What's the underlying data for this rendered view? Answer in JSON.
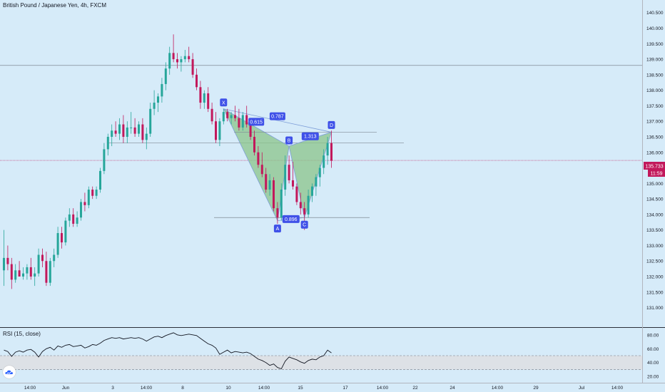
{
  "header": {
    "title": "British Pound / Japanese Yen, 4h, FXCM"
  },
  "rsi_panel": {
    "title": "RSI (15, close)"
  },
  "logo": {
    "icon": "tradingview-cloud-icon"
  },
  "chart_data": [
    {
      "type": "candlestick",
      "title": "British Pound / Japanese Yen, 4h, FXCM",
      "ylim": [
        130.6,
        140.7
      ],
      "y_ticks": [
        "140.500",
        "140.000",
        "139.500",
        "139.000",
        "138.500",
        "138.000",
        "137.500",
        "137.000",
        "136.500",
        "136.000",
        "135.500",
        "135.000",
        "134.500",
        "134.000",
        "133.500",
        "133.000",
        "132.500",
        "132.000",
        "131.500",
        "131.000"
      ],
      "x_ticks": [
        "14:00",
        "Jun",
        "3",
        "14:00",
        "8",
        "10",
        "14:00",
        "15",
        "17",
        "14:00",
        "22",
        "24",
        "14:00",
        "29",
        "Jul",
        "14:00"
      ],
      "last_price": "135.733",
      "countdown": "11:59",
      "colors": {
        "up": "#26a69a",
        "down": "#c2185b",
        "pattern_fill": "#8bc48a",
        "pattern_line": "#7e9ed8",
        "label_bg": "#3f51e8",
        "price_tag": "#c2185b"
      },
      "candles": [
        {
          "o": 132.2,
          "h": 133.5,
          "l": 131.7,
          "c": 132.6
        },
        {
          "o": 132.6,
          "h": 133.0,
          "l": 132.2,
          "c": 132.4
        },
        {
          "o": 132.4,
          "h": 132.6,
          "l": 131.6,
          "c": 131.9
        },
        {
          "o": 131.9,
          "h": 132.4,
          "l": 131.8,
          "c": 132.2
        },
        {
          "o": 132.2,
          "h": 132.5,
          "l": 132.0,
          "c": 132.0
        },
        {
          "o": 132.0,
          "h": 132.3,
          "l": 131.9,
          "c": 132.1
        },
        {
          "o": 132.1,
          "h": 132.4,
          "l": 131.9,
          "c": 132.3
        },
        {
          "o": 132.3,
          "h": 132.6,
          "l": 131.9,
          "c": 132.0
        },
        {
          "o": 132.0,
          "h": 132.3,
          "l": 131.7,
          "c": 132.1
        },
        {
          "o": 132.1,
          "h": 132.9,
          "l": 132.0,
          "c": 132.7
        },
        {
          "o": 132.7,
          "h": 132.9,
          "l": 132.3,
          "c": 132.5
        },
        {
          "o": 132.5,
          "h": 132.8,
          "l": 131.7,
          "c": 131.8
        },
        {
          "o": 131.8,
          "h": 132.6,
          "l": 131.7,
          "c": 132.5
        },
        {
          "o": 132.5,
          "h": 132.9,
          "l": 132.3,
          "c": 132.7
        },
        {
          "o": 132.7,
          "h": 133.6,
          "l": 132.6,
          "c": 133.4
        },
        {
          "o": 133.4,
          "h": 133.6,
          "l": 132.9,
          "c": 133.1
        },
        {
          "o": 133.1,
          "h": 133.9,
          "l": 133.0,
          "c": 133.8
        },
        {
          "o": 133.8,
          "h": 134.2,
          "l": 133.6,
          "c": 134.0
        },
        {
          "o": 134.0,
          "h": 134.2,
          "l": 133.6,
          "c": 133.7
        },
        {
          "o": 133.7,
          "h": 134.1,
          "l": 133.6,
          "c": 133.9
        },
        {
          "o": 133.9,
          "h": 134.5,
          "l": 133.8,
          "c": 134.4
        },
        {
          "o": 134.4,
          "h": 134.7,
          "l": 134.1,
          "c": 134.3
        },
        {
          "o": 134.3,
          "h": 134.9,
          "l": 134.2,
          "c": 134.8
        },
        {
          "o": 134.8,
          "h": 134.9,
          "l": 134.5,
          "c": 134.6
        },
        {
          "o": 134.6,
          "h": 134.9,
          "l": 134.5,
          "c": 134.8
        },
        {
          "o": 134.8,
          "h": 135.5,
          "l": 134.7,
          "c": 135.4
        },
        {
          "o": 135.4,
          "h": 136.3,
          "l": 135.3,
          "c": 136.1
        },
        {
          "o": 136.1,
          "h": 136.6,
          "l": 135.9,
          "c": 136.5
        },
        {
          "o": 136.5,
          "h": 136.9,
          "l": 136.2,
          "c": 136.7
        },
        {
          "o": 136.7,
          "h": 137.0,
          "l": 136.5,
          "c": 136.6
        },
        {
          "o": 136.6,
          "h": 137.1,
          "l": 136.4,
          "c": 136.9
        },
        {
          "o": 136.9,
          "h": 137.2,
          "l": 136.3,
          "c": 136.5
        },
        {
          "o": 136.5,
          "h": 137.0,
          "l": 136.3,
          "c": 136.8
        },
        {
          "o": 136.8,
          "h": 137.3,
          "l": 136.6,
          "c": 136.8
        },
        {
          "o": 136.8,
          "h": 137.1,
          "l": 136.5,
          "c": 136.6
        },
        {
          "o": 136.6,
          "h": 137.0,
          "l": 136.5,
          "c": 136.9
        },
        {
          "o": 136.9,
          "h": 137.1,
          "l": 136.3,
          "c": 136.4
        },
        {
          "o": 136.4,
          "h": 136.8,
          "l": 136.1,
          "c": 136.6
        },
        {
          "o": 136.6,
          "h": 137.6,
          "l": 136.5,
          "c": 137.4
        },
        {
          "o": 137.4,
          "h": 138.0,
          "l": 137.2,
          "c": 137.6
        },
        {
          "o": 137.6,
          "h": 137.9,
          "l": 137.3,
          "c": 137.8
        },
        {
          "o": 137.8,
          "h": 138.4,
          "l": 137.6,
          "c": 138.2
        },
        {
          "o": 138.2,
          "h": 138.9,
          "l": 138.0,
          "c": 138.7
        },
        {
          "o": 138.7,
          "h": 139.4,
          "l": 138.5,
          "c": 139.2
        },
        {
          "o": 139.2,
          "h": 139.8,
          "l": 138.9,
          "c": 139.0
        },
        {
          "o": 139.0,
          "h": 139.2,
          "l": 138.7,
          "c": 138.9
        },
        {
          "o": 138.9,
          "h": 139.1,
          "l": 138.6,
          "c": 139.0
        },
        {
          "o": 139.0,
          "h": 139.3,
          "l": 138.9,
          "c": 139.1
        },
        {
          "o": 139.1,
          "h": 139.4,
          "l": 138.9,
          "c": 139.0
        },
        {
          "o": 139.0,
          "h": 139.2,
          "l": 138.4,
          "c": 138.5
        },
        {
          "o": 138.5,
          "h": 138.7,
          "l": 138.0,
          "c": 138.1
        },
        {
          "o": 138.1,
          "h": 138.3,
          "l": 137.4,
          "c": 137.6
        },
        {
          "o": 137.6,
          "h": 138.0,
          "l": 137.4,
          "c": 137.9
        },
        {
          "o": 137.9,
          "h": 138.1,
          "l": 137.3,
          "c": 137.4
        },
        {
          "o": 137.4,
          "h": 137.6,
          "l": 136.9,
          "c": 137.0
        },
        {
          "o": 137.0,
          "h": 137.3,
          "l": 136.3,
          "c": 136.4
        },
        {
          "o": 136.4,
          "h": 137.1,
          "l": 136.2,
          "c": 137.0
        },
        {
          "o": 137.0,
          "h": 137.4,
          "l": 136.9,
          "c": 137.3
        },
        {
          "o": 137.3,
          "h": 137.4,
          "l": 137.0,
          "c": 137.1
        },
        {
          "o": 137.1,
          "h": 137.3,
          "l": 136.9,
          "c": 137.2
        },
        {
          "o": 137.2,
          "h": 137.5,
          "l": 137.0,
          "c": 137.1
        },
        {
          "o": 137.1,
          "h": 137.4,
          "l": 136.7,
          "c": 136.8
        },
        {
          "o": 136.8,
          "h": 137.3,
          "l": 136.7,
          "c": 137.2
        },
        {
          "o": 137.2,
          "h": 137.5,
          "l": 136.8,
          "c": 136.9
        },
        {
          "o": 136.9,
          "h": 137.1,
          "l": 136.4,
          "c": 136.5
        },
        {
          "o": 136.5,
          "h": 136.7,
          "l": 135.9,
          "c": 136.0
        },
        {
          "o": 136.0,
          "h": 136.2,
          "l": 135.5,
          "c": 135.6
        },
        {
          "o": 135.6,
          "h": 136.0,
          "l": 135.2,
          "c": 135.3
        },
        {
          "o": 135.3,
          "h": 135.5,
          "l": 134.7,
          "c": 134.8
        },
        {
          "o": 134.8,
          "h": 135.3,
          "l": 134.6,
          "c": 135.1
        },
        {
          "o": 135.1,
          "h": 135.2,
          "l": 134.1,
          "c": 134.2
        },
        {
          "o": 134.2,
          "h": 134.4,
          "l": 133.7,
          "c": 133.9
        },
        {
          "o": 133.9,
          "h": 135.0,
          "l": 133.8,
          "c": 134.8
        },
        {
          "o": 134.8,
          "h": 135.9,
          "l": 134.6,
          "c": 135.6
        },
        {
          "o": 135.6,
          "h": 135.9,
          "l": 135.0,
          "c": 135.1
        },
        {
          "o": 135.1,
          "h": 135.7,
          "l": 134.8,
          "c": 134.9
        },
        {
          "o": 134.9,
          "h": 135.0,
          "l": 134.3,
          "c": 134.4
        },
        {
          "o": 134.4,
          "h": 134.7,
          "l": 134.0,
          "c": 134.2
        },
        {
          "o": 134.2,
          "h": 134.4,
          "l": 133.5,
          "c": 134.0
        },
        {
          "o": 134.0,
          "h": 134.8,
          "l": 133.9,
          "c": 134.6
        },
        {
          "o": 134.6,
          "h": 135.0,
          "l": 134.4,
          "c": 134.9
        },
        {
          "o": 134.9,
          "h": 135.3,
          "l": 134.6,
          "c": 135.2
        },
        {
          "o": 135.2,
          "h": 135.6,
          "l": 134.9,
          "c": 135.5
        },
        {
          "o": 135.5,
          "h": 136.1,
          "l": 135.3,
          "c": 135.9
        },
        {
          "o": 135.9,
          "h": 136.5,
          "l": 135.6,
          "c": 136.3
        },
        {
          "o": 136.3,
          "h": 136.7,
          "l": 135.5,
          "c": 135.73
        }
      ],
      "horizontal_levels": [
        138.8,
        136.3,
        135.74
      ],
      "pattern": {
        "points": [
          {
            "label": "X",
            "candle": 57,
            "price": 137.4
          },
          {
            "label": "A",
            "candle": 71,
            "price": 133.8
          },
          {
            "label": "B",
            "candle": 74,
            "price": 136.2
          },
          {
            "label": "C",
            "candle": 78,
            "price": 133.9
          },
          {
            "label": "D",
            "candle": 85,
            "price": 136.65
          }
        ],
        "ratios": [
          "0.615",
          "0.787",
          "1.313",
          "0.896"
        ]
      }
    },
    {
      "type": "line",
      "title": "RSI (15, close)",
      "ylim": [
        12,
        88
      ],
      "y_ticks": [
        "80.00",
        "60.00",
        "40.00",
        "20.00"
      ],
      "band": [
        30,
        50
      ],
      "values": [
        58,
        56,
        49,
        55,
        57,
        55,
        58,
        59,
        55,
        48,
        56,
        60,
        62,
        58,
        64,
        62,
        65,
        66,
        63,
        64,
        65,
        61,
        63,
        66,
        65,
        68,
        72,
        74,
        76,
        75,
        76,
        74,
        75,
        76,
        75,
        76,
        74,
        71,
        74,
        77,
        78,
        76,
        79,
        81,
        83,
        80,
        79,
        80,
        81,
        80,
        79,
        75,
        71,
        67,
        65,
        61,
        52,
        55,
        58,
        54,
        56,
        55,
        54,
        55,
        53,
        49,
        45,
        43,
        40,
        36,
        38,
        33,
        31,
        42,
        48,
        46,
        44,
        41,
        39,
        43,
        45,
        44,
        48,
        50,
        58,
        54
      ],
      "colors": {
        "line": "#131722",
        "band": "#dde1e6"
      }
    }
  ]
}
